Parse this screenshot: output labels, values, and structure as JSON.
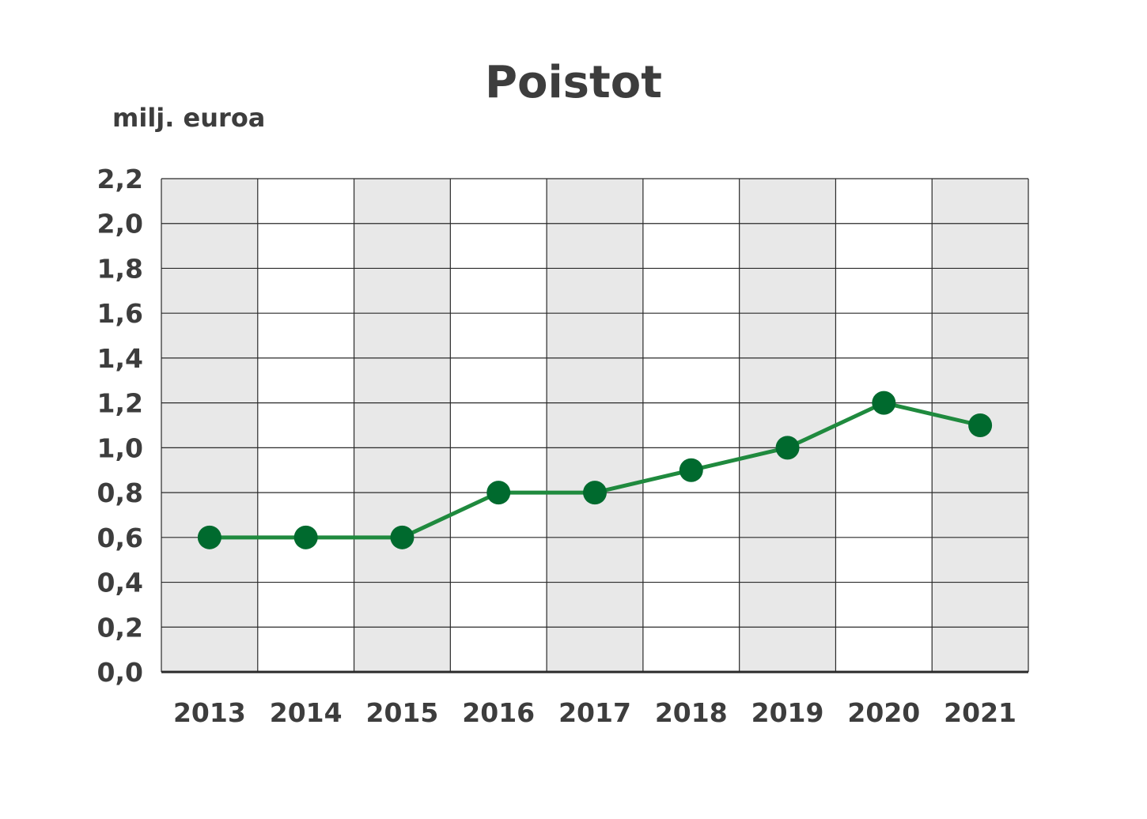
{
  "chart_data": {
    "type": "line",
    "title": "Poistot",
    "ylabel": "milj. euroa",
    "xlabel": "",
    "categories": [
      "2013",
      "2014",
      "2015",
      "2016",
      "2017",
      "2018",
      "2019",
      "2020",
      "2021"
    ],
    "series": [
      {
        "values": [
          0.6,
          0.6,
          0.6,
          0.8,
          0.8,
          0.9,
          1.0,
          1.2,
          1.1
        ],
        "color": "#006a2e",
        "line_color": "#1f8a3e"
      }
    ],
    "ylim": [
      0,
      2.2
    ],
    "yticks": [
      "0,0",
      "0,2",
      "0,4",
      "0,6",
      "0,8",
      "1,0",
      "1,2",
      "1,4",
      "1,6",
      "1,8",
      "2,0",
      "2,2"
    ],
    "grid": true,
    "legend": "none",
    "colors": {
      "band_shade": "#e8e8e8",
      "band_plain": "#ffffff",
      "grid": "#2a2a2a",
      "text": "#3d3d3d"
    }
  }
}
